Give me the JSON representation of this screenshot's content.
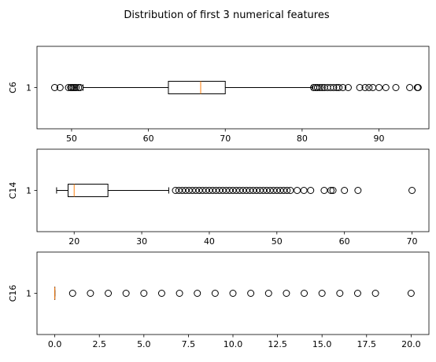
{
  "figure": {
    "title": "Distribution of first 3 numerical features"
  },
  "chart_data": [
    {
      "type": "boxplot",
      "orientation": "horizontal",
      "ylabel": "C6",
      "category_tick": "1",
      "xlim": [
        45.5,
        96.5
      ],
      "xticks": [
        50,
        60,
        70,
        80,
        90
      ],
      "box": {
        "whisker_low": 51.5,
        "q1": 62.6,
        "median": 66.8,
        "q3": 70.0,
        "whisker_high": 81.3
      },
      "outliers": [
        47.8,
        48.5,
        49.6,
        49.9,
        50.0,
        50.2,
        50.4,
        50.6,
        50.9,
        51.1,
        81.5,
        81.8,
        82.0,
        82.3,
        82.6,
        82.9,
        83.3,
        83.7,
        84.1,
        84.5,
        84.8,
        85.3,
        86.0,
        87.5,
        88.2,
        88.7,
        89.2,
        90.0,
        90.9,
        92.2,
        94.0,
        95.0,
        95.1
      ]
    },
    {
      "type": "boxplot",
      "orientation": "horizontal",
      "ylabel": "C14",
      "category_tick": "1",
      "xlim": [
        14.5,
        72.5
      ],
      "xticks": [
        20,
        30,
        40,
        50,
        60,
        70
      ],
      "box": {
        "whisker_low": 17.4,
        "q1": 19.1,
        "median": 20.0,
        "q3": 25.0,
        "whisker_high": 34.0
      },
      "outliers": [
        35,
        35.5,
        36,
        36.5,
        37,
        37.5,
        38,
        38.5,
        39,
        39.5,
        40,
        40.5,
        41,
        41.5,
        42,
        42.5,
        43,
        43.5,
        44,
        44.5,
        45,
        45.5,
        46,
        46.5,
        47,
        47.5,
        48,
        48.5,
        49,
        49.5,
        50,
        50.5,
        51,
        51.5,
        52,
        53,
        54,
        55,
        57,
        58,
        58.3,
        60,
        62,
        70
      ]
    },
    {
      "type": "boxplot",
      "orientation": "horizontal",
      "ylabel": "C16",
      "category_tick": "1",
      "xlim": [
        -1.0,
        21.0
      ],
      "xticks": [
        0.0,
        2.5,
        5.0,
        7.5,
        10.0,
        12.5,
        15.0,
        17.5,
        20.0
      ],
      "xtick_labels": [
        "0.0",
        "2.5",
        "5.0",
        "7.5",
        "10.0",
        "12.5",
        "15.0",
        "17.5",
        "20.0"
      ],
      "box": {
        "whisker_low": 0,
        "q1": 0,
        "median": 0,
        "q3": 0,
        "whisker_high": 0
      },
      "outliers": [
        1,
        2,
        3,
        4,
        5,
        6,
        7,
        8,
        9,
        10,
        11,
        12,
        13,
        14,
        15,
        16,
        17,
        18,
        20
      ]
    }
  ],
  "colors": {
    "box_edge": "#000000",
    "median": "#ff7f0e",
    "flier": "#000000",
    "spine": "#000000",
    "background": "#ffffff"
  }
}
